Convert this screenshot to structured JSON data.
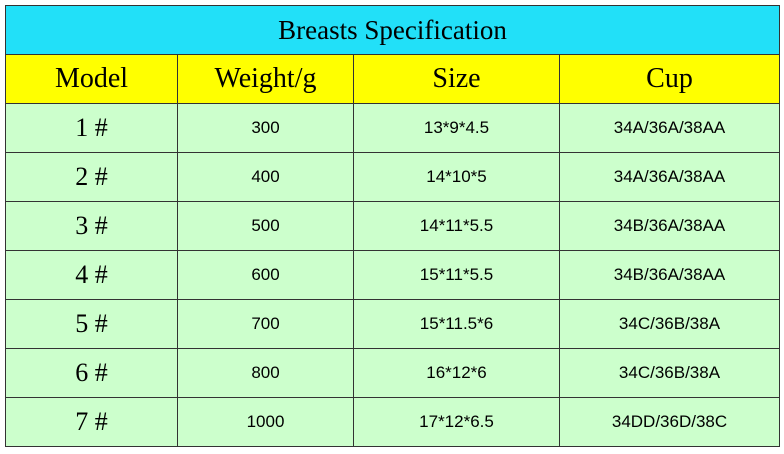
{
  "table": {
    "title": "Breasts Specification",
    "header": [
      "Model",
      "Weight/g",
      "Size",
      "Cup"
    ],
    "rows": [
      [
        "1 #",
        "300",
        "13*9*4.5",
        "34A/36A/38AA"
      ],
      [
        "2 #",
        "400",
        "14*10*5",
        "34A/36A/38AA"
      ],
      [
        "3 #",
        "500",
        "14*11*5.5",
        "34B/36A/38AA"
      ],
      [
        "4 #",
        "600",
        "15*11*5.5",
        "34B/36A/38AA"
      ],
      [
        "5 #",
        "700",
        "15*11.5*6",
        "34C/36B/38A"
      ],
      [
        "6 #",
        "800",
        "16*12*6",
        "34C/36B/38A"
      ],
      [
        "7 #",
        "1000",
        "17*12*6.5",
        "34DD/36D/38C"
      ]
    ]
  }
}
